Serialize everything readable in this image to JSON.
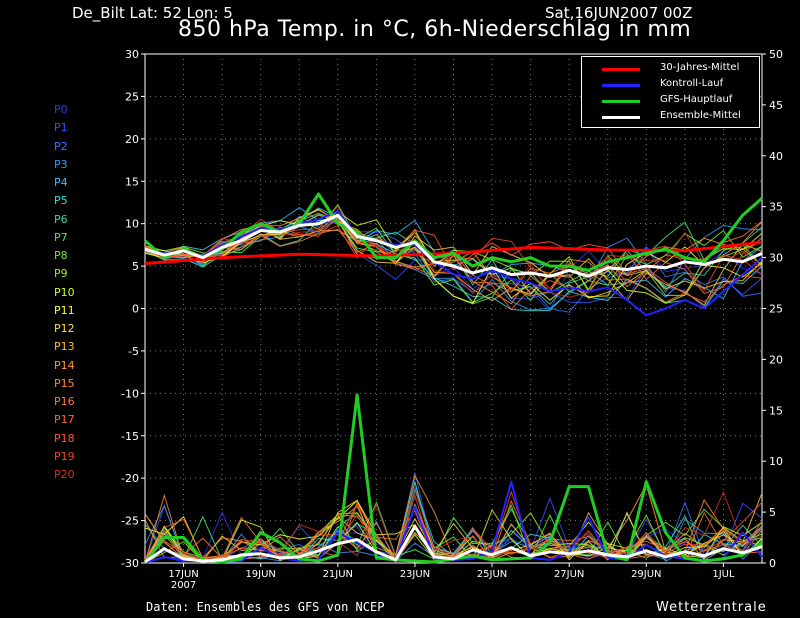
{
  "header": {
    "station": "De_Bilt   Lat: 52 Lon: 5",
    "date": "Sat,16JUN2007 00Z",
    "title": "850 hPa Temp. in °C, 6h-Niederschlag in mm"
  },
  "footer": {
    "source": "Daten: Ensembles des GFS von NCEP",
    "brand": "Wetterzentrale"
  },
  "members": [
    {
      "label": "P0",
      "color": "#3333ff"
    },
    {
      "label": "P1",
      "color": "#3355ff"
    },
    {
      "label": "P2",
      "color": "#3377ff"
    },
    {
      "label": "P3",
      "color": "#3399ff"
    },
    {
      "label": "P4",
      "color": "#33bbff"
    },
    {
      "label": "P5",
      "color": "#33dddd"
    },
    {
      "label": "P6",
      "color": "#33ddaa"
    },
    {
      "label": "P7",
      "color": "#44ee66"
    },
    {
      "label": "P8",
      "color": "#66ee33"
    },
    {
      "label": "P9",
      "color": "#99ee22"
    },
    {
      "label": "P10",
      "color": "#ccff22"
    },
    {
      "label": "P11",
      "color": "#ffff33"
    },
    {
      "label": "P12",
      "color": "#ffdd33"
    },
    {
      "label": "P13",
      "color": "#ffbb33"
    },
    {
      "label": "P14",
      "color": "#ff9933"
    },
    {
      "label": "P15",
      "color": "#ff8833"
    },
    {
      "label": "P16",
      "color": "#ff7733"
    },
    {
      "label": "P17",
      "color": "#ff6633"
    },
    {
      "label": "P18",
      "color": "#ff5533"
    },
    {
      "label": "P19",
      "color": "#ee4422"
    },
    {
      "label": "P20",
      "color": "#cc3322"
    }
  ],
  "chart_data": {
    "type": "line",
    "title": "850 hPa Temp. in °C, 6h-Niederschlag in mm",
    "x_labels": [
      {
        "day": 1,
        "text": "17JUN",
        "sub": "2007"
      },
      {
        "day": 3,
        "text": "19JUN"
      },
      {
        "day": 5,
        "text": "21JUN"
      },
      {
        "day": 7,
        "text": "23JUN"
      },
      {
        "day": 9,
        "text": "25JUN"
      },
      {
        "day": 11,
        "text": "27JUN"
      },
      {
        "day": 13,
        "text": "29JUN"
      },
      {
        "day": 15,
        "text": "1JUL"
      }
    ],
    "xlim": [
      0,
      16
    ],
    "y_left": {
      "unit": "°C",
      "ylim": [
        -30,
        30
      ],
      "ticks": [
        -30,
        -25,
        -20,
        -15,
        -10,
        -5,
        0,
        5,
        10,
        15,
        20,
        25,
        30
      ]
    },
    "y_right": {
      "unit": "mm",
      "ylim": [
        0,
        50
      ],
      "ticks": [
        0,
        5,
        10,
        15,
        20,
        25,
        30,
        35,
        40,
        45,
        50
      ]
    },
    "grid": true,
    "legend": {
      "position": "top-right",
      "entries": [
        {
          "name": "30-Jahres-Mittel",
          "color": "#ff0000"
        },
        {
          "name": "Kontroll-Lauf",
          "color": "#2222ff"
        },
        {
          "name": "GFS-Hauptlauf",
          "color": "#22cc22"
        },
        {
          "name": "Ensemble-Mittel",
          "color": "#ffffff"
        }
      ]
    },
    "series": [
      {
        "name": "30-Jahres-Mittel",
        "color": "#ff0000",
        "width": 3,
        "axis": "temp",
        "x": [
          0,
          2,
          4,
          6,
          8,
          10,
          12,
          14,
          16
        ],
        "y": [
          5.3,
          6.0,
          6.4,
          6.2,
          6.5,
          7.2,
          6.9,
          6.8,
          7.8
        ]
      },
      {
        "name": "GFS-Hauptlauf",
        "color": "#22cc22",
        "width": 3,
        "axis": "temp",
        "x": [
          0,
          0.5,
          1,
          1.5,
          2,
          2.5,
          3,
          3.5,
          4,
          4.5,
          5,
          5.5,
          6,
          6.5,
          7,
          7.5,
          8,
          8.5,
          9,
          9.5,
          10,
          10.5,
          11,
          11.5,
          12,
          12.5,
          13,
          13.5,
          14,
          14.5,
          15,
          15.5,
          16
        ],
        "y": [
          8,
          6,
          7,
          6,
          7,
          9,
          10,
          9,
          10,
          13.5,
          10,
          9,
          6,
          6,
          8,
          6,
          6.5,
          5,
          6,
          5.5,
          6,
          5,
          5,
          4.5,
          5.5,
          6,
          6.5,
          7,
          6,
          5.5,
          8,
          11,
          13
        ]
      },
      {
        "name": "Kontroll-Lauf",
        "color": "#2222ff",
        "width": 2,
        "axis": "temp",
        "x": [
          0,
          0.5,
          1,
          1.5,
          2,
          2.5,
          3,
          3.5,
          4,
          4.5,
          5,
          5.5,
          6,
          6.5,
          7,
          7.5,
          8,
          8.5,
          9,
          9.5,
          10,
          10.5,
          11,
          11.5,
          12,
          12.5,
          13,
          13.5,
          14,
          14.5,
          15,
          15.5,
          16
        ],
        "y": [
          7,
          6.5,
          6.8,
          6.2,
          7.5,
          8.5,
          9.5,
          9.3,
          10,
          10.5,
          11.5,
          8.5,
          8,
          7.5,
          7.5,
          5.5,
          4,
          3.5,
          4.5,
          3.5,
          3,
          2,
          2.5,
          2,
          2.5,
          1,
          -0.8,
          0,
          1,
          0,
          2,
          4,
          6
        ]
      },
      {
        "name": "Ensemble-Mittel",
        "color": "#ffffff",
        "width": 3,
        "axis": "temp",
        "x": [
          0,
          0.5,
          1,
          1.5,
          2,
          2.5,
          3,
          3.5,
          4,
          4.5,
          5,
          5.5,
          6,
          6.5,
          7,
          7.5,
          8,
          8.5,
          9,
          9.5,
          10,
          10.5,
          11,
          11.5,
          12,
          12.5,
          13,
          13.5,
          14,
          14.5,
          15,
          15.5,
          16
        ],
        "y": [
          7,
          6.3,
          6.8,
          6,
          7.2,
          8,
          9.2,
          9,
          9.8,
          10,
          11,
          8.5,
          8,
          7.2,
          7.8,
          5.5,
          5,
          4.2,
          4.8,
          4,
          4.2,
          3.8,
          4.5,
          3.8,
          4.8,
          4.6,
          5,
          4.8,
          5.5,
          5.2,
          5.8,
          5.5,
          6.5
        ]
      },
      {
        "name": "GFS-Hauptlauf",
        "color": "#22cc22",
        "width": 3,
        "axis": "precip",
        "x": [
          0,
          0.5,
          1,
          1.5,
          2,
          2.5,
          3,
          3.5,
          4,
          4.5,
          5,
          5.5,
          6,
          6.5,
          7,
          7.5,
          8,
          8.5,
          9,
          9.5,
          10,
          10.5,
          11,
          11.5,
          12,
          12.5,
          13,
          13.5,
          14,
          14.5,
          15,
          15.5,
          16
        ],
        "y": [
          0,
          2.5,
          2.5,
          0.3,
          0.1,
          0.4,
          3,
          2,
          0.4,
          0.2,
          0.8,
          16.5,
          0.5,
          0.3,
          0.2,
          0.1,
          0.4,
          0.7,
          0.3,
          0.4,
          0.5,
          2,
          7.5,
          7.5,
          0.8,
          0.3,
          8,
          3,
          0.5,
          0.2,
          0.4,
          0.8,
          2
        ]
      },
      {
        "name": "Kontroll-Lauf",
        "color": "#2222ff",
        "width": 2,
        "axis": "precip",
        "x": [
          0,
          0.5,
          1,
          1.5,
          2,
          2.5,
          3,
          3.5,
          4,
          4.5,
          5,
          5.5,
          6,
          6.5,
          7,
          7.5,
          8,
          8.5,
          9,
          9.5,
          10,
          10.5,
          11,
          11.5,
          12,
          12.5,
          13,
          13.5,
          14,
          14.5,
          15,
          15.5,
          16
        ],
        "y": [
          0,
          0.6,
          0.2,
          0.3,
          0.1,
          0.2,
          1.5,
          0.5,
          0.2,
          0.3,
          3,
          2,
          1,
          0.3,
          5.5,
          0.5,
          0.3,
          0.4,
          1.2,
          8,
          0.5,
          0.3,
          1,
          4.5,
          0.5,
          0.3,
          1.8,
          0.7,
          0.4,
          0.2,
          0.5,
          3,
          0.6
        ]
      },
      {
        "name": "Ensemble-Mittel",
        "color": "#ffffff",
        "width": 3,
        "axis": "precip",
        "x": [
          0,
          0.5,
          1,
          1.5,
          2,
          2.5,
          3,
          3.5,
          4,
          4.5,
          5,
          5.5,
          6,
          6.5,
          7,
          7.5,
          8,
          8.5,
          9,
          9.5,
          10,
          10.5,
          11,
          11.5,
          12,
          12.5,
          13,
          13.5,
          14,
          14.5,
          15,
          15.5,
          16
        ],
        "y": [
          0.1,
          1.4,
          0.4,
          0.2,
          0.3,
          0.8,
          0.9,
          0.5,
          0.6,
          1.2,
          1.9,
          2.3,
          1.1,
          0.3,
          3.6,
          0.6,
          0.4,
          1.3,
          0.8,
          1.5,
          0.7,
          1.1,
          0.9,
          1.2,
          0.8,
          0.6,
          1.2,
          0.6,
          1.1,
          0.7,
          1.4,
          1.0,
          1.6
        ]
      }
    ]
  }
}
